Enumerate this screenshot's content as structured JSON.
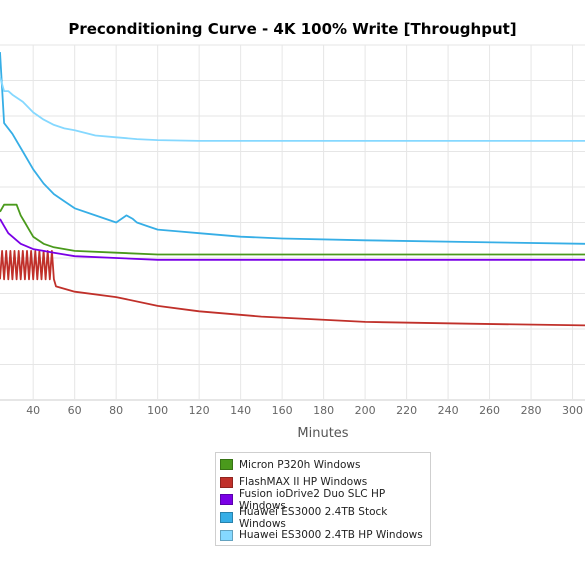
{
  "chart_data": {
    "type": "line",
    "title": "Preconditioning Curve - 4K 100% Write [Throughput]",
    "xlabel": "Minutes",
    "ylabel": "",
    "xlim": [
      24,
      306
    ],
    "ylim": [
      0,
      100
    ],
    "x_ticks": [
      40,
      60,
      80,
      100,
      120,
      140,
      160,
      180,
      200,
      220,
      240,
      260,
      280,
      300
    ],
    "grid": true,
    "legend_position": "bottom",
    "series": [
      {
        "name": "Micron P320h Windows",
        "color": "#4a9a1c",
        "x": [
          24,
          26,
          28,
          30,
          32,
          34,
          36,
          38,
          40,
          45,
          50,
          60,
          80,
          100,
          140,
          200,
          250,
          306
        ],
        "values": [
          53,
          55,
          55,
          55,
          55,
          52,
          50,
          48,
          46,
          44,
          43,
          42,
          41.5,
          41,
          41,
          41,
          41,
          41
        ]
      },
      {
        "name": "FlashMAX II HP Windows",
        "color": "#c0302a",
        "x": [
          24,
          25,
          26,
          27,
          28,
          29,
          30,
          31,
          32,
          33,
          34,
          35,
          36,
          37,
          38,
          39,
          40,
          41,
          42,
          43,
          44,
          45,
          46,
          47,
          48,
          49,
          50,
          51,
          60,
          80,
          100,
          120,
          150,
          200,
          250,
          306
        ],
        "values": [
          34,
          42,
          34,
          42,
          34,
          42,
          34,
          42,
          34,
          42,
          34,
          42,
          34,
          42,
          34,
          42,
          34,
          42,
          34,
          42,
          34,
          42,
          34,
          42,
          34,
          42,
          34,
          32,
          30.5,
          29,
          26.5,
          25,
          23.5,
          22,
          21.5,
          21
        ]
      },
      {
        "name": "Fusion ioDrive2 Duo SLC HP Windows",
        "color": "#7a00e6",
        "x": [
          24,
          26,
          28,
          30,
          32,
          34,
          36,
          38,
          40,
          45,
          50,
          60,
          80,
          100,
          140,
          200,
          250,
          306
        ],
        "values": [
          51,
          49,
          47,
          46,
          45,
          44,
          43.5,
          43,
          42.5,
          42,
          41.5,
          40.5,
          40,
          39.5,
          39.5,
          39.5,
          39.5,
          39.5
        ]
      },
      {
        "name": "Huawei ES3000 2.4TB Stock Windows",
        "color": "#36aee6",
        "x": [
          24,
          26,
          30,
          35,
          40,
          45,
          50,
          55,
          60,
          70,
          80,
          85,
          88,
          90,
          95,
          100,
          110,
          120,
          140,
          160,
          200,
          250,
          306
        ],
        "values": [
          98,
          78,
          75,
          70,
          65,
          61,
          58,
          56,
          54,
          52,
          50,
          52,
          51,
          50,
          49,
          48,
          47.5,
          47,
          46,
          45.5,
          45,
          44.5,
          44
        ]
      },
      {
        "name": "Huawei ES3000 2.4TB HP Windows",
        "color": "#85d8ff",
        "x": [
          24,
          26,
          28,
          30,
          35,
          40,
          45,
          50,
          55,
          60,
          70,
          80,
          90,
          100,
          120,
          140,
          160,
          200,
          250,
          306
        ],
        "values": [
          91,
          87,
          87,
          86,
          84,
          81,
          79,
          77.5,
          76.5,
          76,
          74.5,
          74,
          73.5,
          73.2,
          73,
          73,
          73,
          73,
          73,
          73
        ]
      }
    ]
  }
}
